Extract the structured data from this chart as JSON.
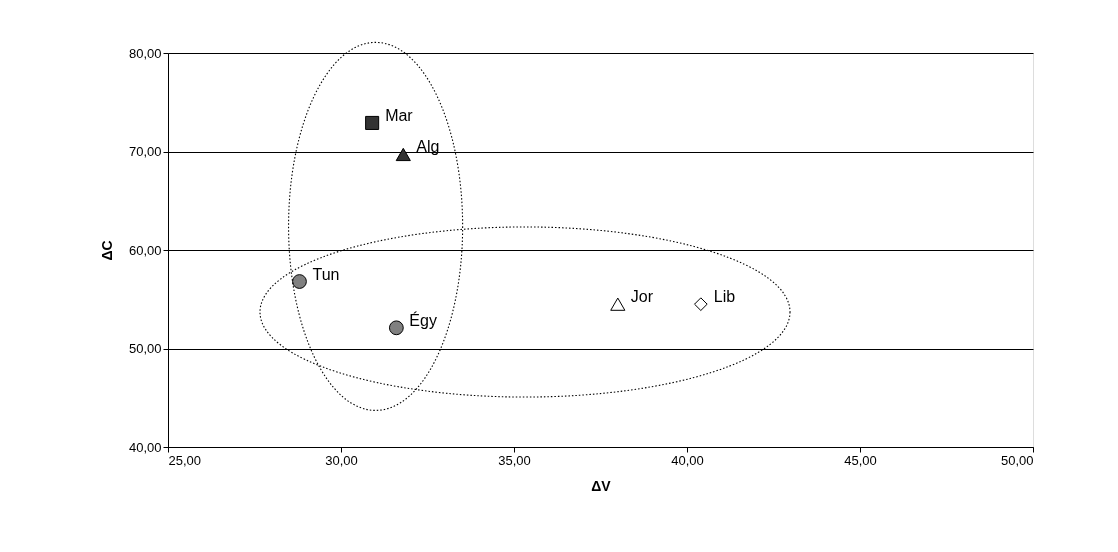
{
  "chart_data": {
    "type": "scatter",
    "xlabel": "ΔV",
    "ylabel": "ΔC",
    "xlim": [
      25,
      50
    ],
    "ylim": [
      40,
      80
    ],
    "xticks": [
      {
        "value": 25,
        "label": "25,00"
      },
      {
        "value": 30,
        "label": "30,00"
      },
      {
        "value": 35,
        "label": "35,00"
      },
      {
        "value": 40,
        "label": "40,00"
      },
      {
        "value": 45,
        "label": "45,00"
      },
      {
        "value": 50,
        "label": "50,00"
      }
    ],
    "yticks": [
      {
        "value": 40,
        "label": "40,00"
      },
      {
        "value": 50,
        "label": "50,00"
      },
      {
        "value": 60,
        "label": "60,00"
      },
      {
        "value": 70,
        "label": "70,00"
      },
      {
        "value": 80,
        "label": "80,00"
      }
    ],
    "grid": "y",
    "series": [
      {
        "name": "Mar",
        "color": "#333333",
        "marker": "square",
        "x": [
          30.9
        ],
        "values": [
          72.9
        ]
      },
      {
        "name": "Alg",
        "color": "#333333",
        "marker": "triangle",
        "x": [
          31.8
        ],
        "values": [
          69.7
        ]
      },
      {
        "name": "Tun",
        "color": "#808080",
        "marker": "circle",
        "x": [
          28.8
        ],
        "values": [
          56.8
        ]
      },
      {
        "name": "Égy",
        "color": "#808080",
        "marker": "circle",
        "x": [
          31.6
        ],
        "values": [
          52.1
        ]
      },
      {
        "name": "Jor",
        "color": "#ffffff",
        "marker": "triangle",
        "x": [
          38.0
        ],
        "values": [
          54.5
        ]
      },
      {
        "name": "Lib",
        "color": "#ffffff",
        "marker": "diamond",
        "x": [
          40.4
        ],
        "values": [
          54.5
        ]
      }
    ]
  }
}
